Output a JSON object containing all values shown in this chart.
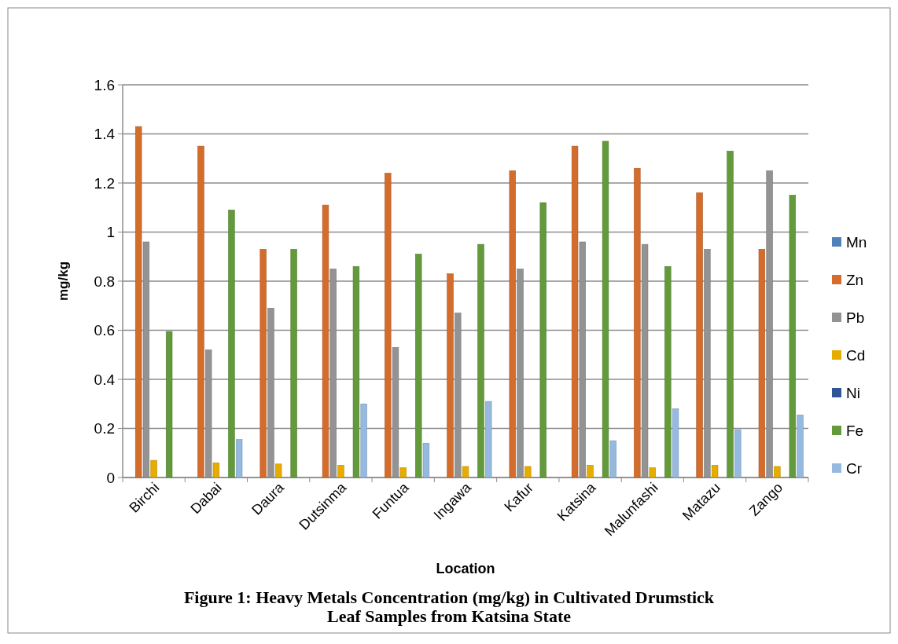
{
  "chart_data": {
    "type": "bar",
    "ylabel": "mg/kg",
    "xlabel": "Location",
    "categories": [
      "Birchi",
      "Dabai",
      "Daura",
      "Dutsinma",
      "Funtua",
      "Ingawa",
      "Kafur",
      "Katsina",
      "Malunfashi",
      "Matazu",
      "Zango"
    ],
    "series": [
      {
        "name": "Mn",
        "color": "#4f81bd",
        "values": [
          0,
          0,
          0,
          0,
          0,
          0,
          0,
          0,
          0,
          0,
          0
        ]
      },
      {
        "name": "Zn",
        "color": "#d46c2b",
        "values": [
          1.43,
          1.35,
          0.93,
          1.11,
          1.24,
          0.83,
          1.25,
          1.35,
          1.26,
          1.16,
          0.93
        ]
      },
      {
        "name": "Pb",
        "color": "#939393",
        "values": [
          0.96,
          0.52,
          0.69,
          0.85,
          0.53,
          0.67,
          0.85,
          0.96,
          0.95,
          0.93,
          1.25
        ]
      },
      {
        "name": "Cd",
        "color": "#e6ac00",
        "values": [
          0.07,
          0.06,
          0.055,
          0.05,
          0.04,
          0.045,
          0.045,
          0.05,
          0.04,
          0.05,
          0.045
        ]
      },
      {
        "name": "Ni",
        "color": "#2f5597",
        "values": [
          0,
          0,
          0,
          0,
          0,
          0,
          0,
          0,
          0,
          0,
          0
        ]
      },
      {
        "name": "Fe",
        "color": "#639a3c",
        "values": [
          0.595,
          1.09,
          0.93,
          0.86,
          0.91,
          0.95,
          1.12,
          1.37,
          0.86,
          1.33,
          1.15
        ]
      },
      {
        "name": "Cr",
        "color": "#96b9e0",
        "values": [
          0,
          0.155,
          0,
          0.3,
          0.14,
          0.31,
          0,
          0.15,
          0.28,
          0.195,
          0.255
        ]
      }
    ],
    "ylim": [
      0,
      1.6
    ],
    "yticks": [
      0,
      0.2,
      0.4,
      0.6,
      0.8,
      1,
      1.2,
      1.4,
      1.6
    ],
    "grid": "y",
    "legend": "right",
    "annotations": [
      "Figure 1: Heavy Metals Concentration (mg/kg) in Cultivated Drumstick Leaf Samples from Katsina State"
    ]
  }
}
